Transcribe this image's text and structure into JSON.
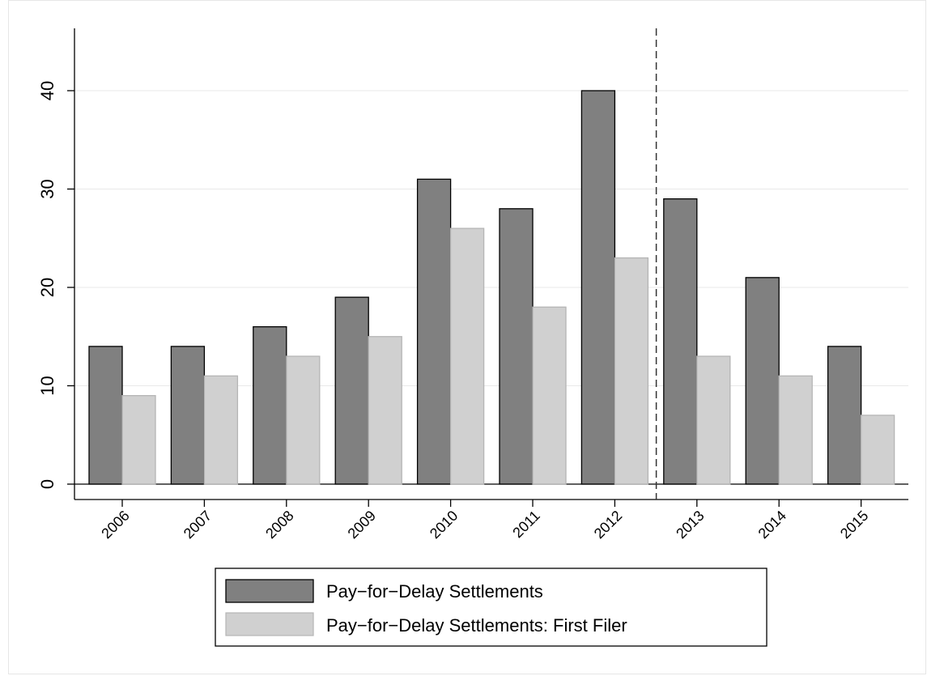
{
  "chart_data": {
    "type": "bar",
    "title": "",
    "xlabel": "",
    "ylabel": "",
    "categories": [
      "2006",
      "2007",
      "2008",
      "2009",
      "2010",
      "2011",
      "2012",
      "2013",
      "2014",
      "2015"
    ],
    "series": [
      {
        "name": "Pay−for−Delay Settlements",
        "values": [
          14,
          14,
          16,
          19,
          31,
          28,
          40,
          29,
          21,
          14
        ],
        "color": "#808080"
      },
      {
        "name": "Pay−for−Delay Settlements: First Filer",
        "values": [
          9,
          11,
          13,
          15,
          26,
          18,
          23,
          13,
          11,
          7
        ],
        "color": "#d0d0d0"
      }
    ],
    "y_ticks": [
      "0",
      "10",
      "20",
      "30",
      "40"
    ],
    "ylim": [
      0,
      40
    ],
    "grid": true,
    "legend_position": "bottom",
    "reference_line": {
      "between": [
        "2012",
        "2013"
      ],
      "style": "dashed"
    }
  }
}
